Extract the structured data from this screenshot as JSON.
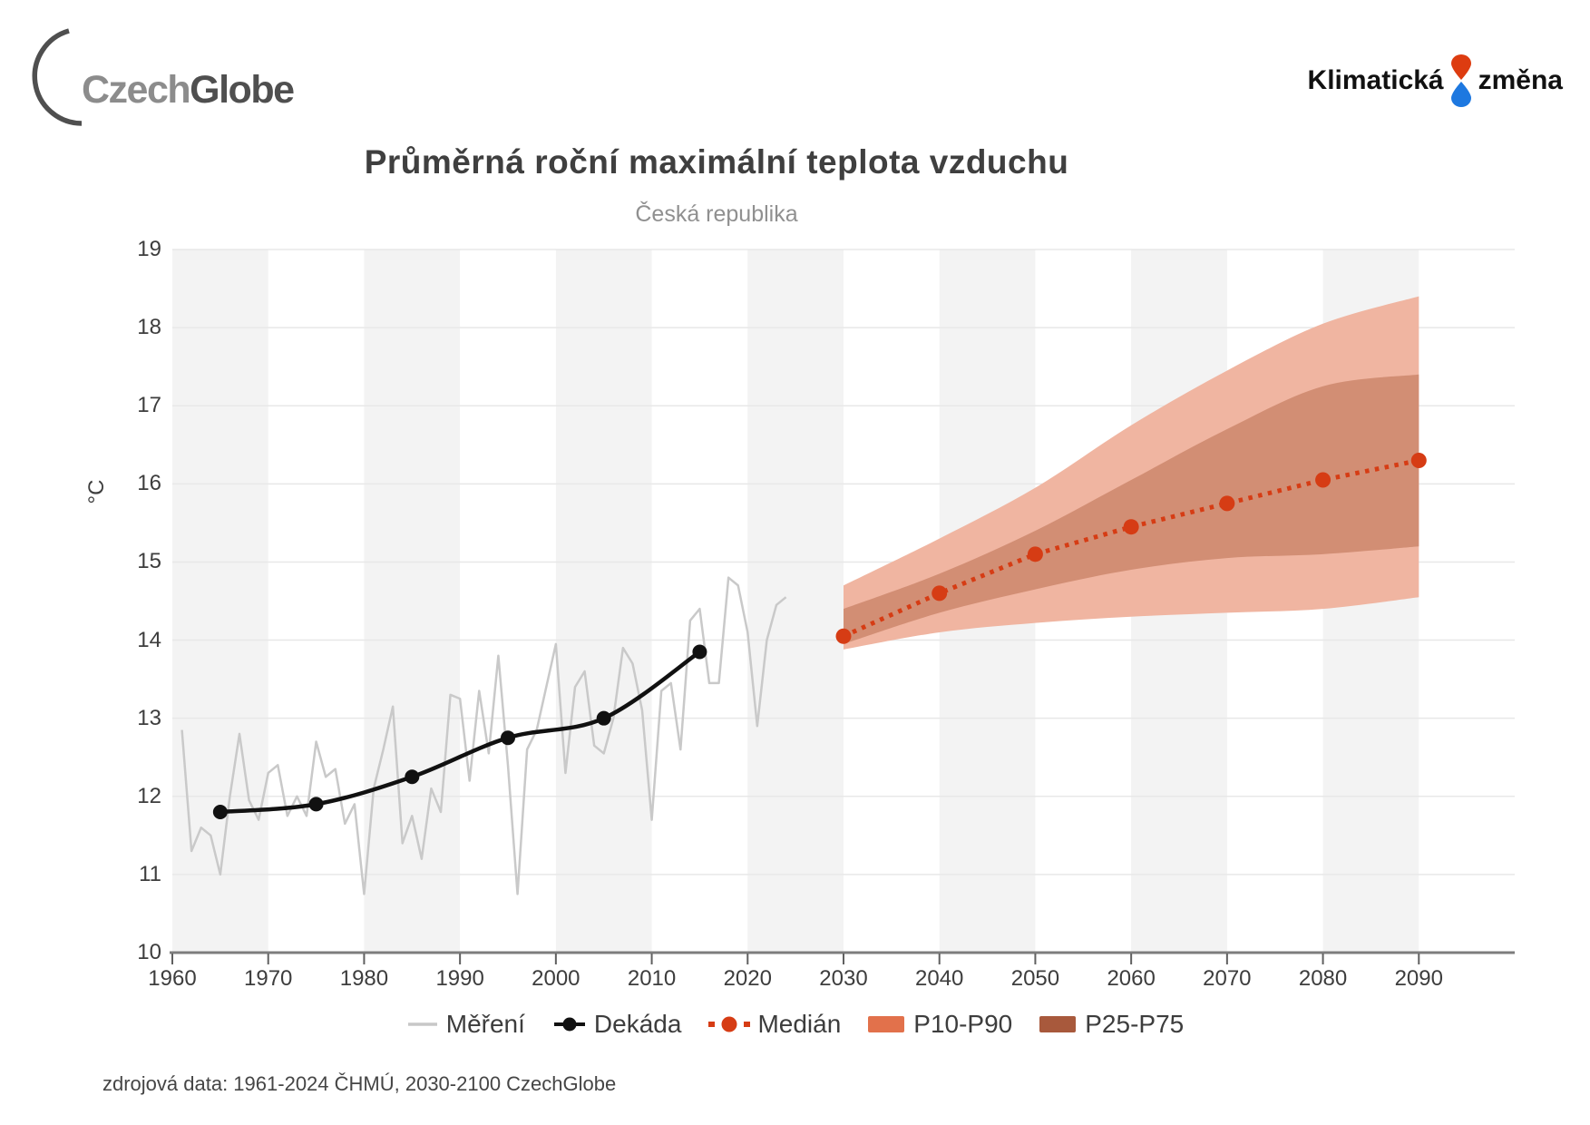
{
  "header": {
    "logo_left": {
      "text_part1": "Czech",
      "text_part2": "Globe"
    },
    "logo_right": {
      "word1": "Klimatická",
      "word2": "změna",
      "drop_red": "#dd3c10",
      "drop_blue": "#1d78e0"
    }
  },
  "title": "Průměrná roční maximální teplota vzduchu",
  "subtitle": "Česká republika",
  "source_note": "zdrojová data: 1961-2024 ČHMÚ, 2030-2100 CzechGlobe",
  "legend": {
    "items": [
      {
        "label": "Měření",
        "swatch": "gray-line",
        "color": "#c7c7c7"
      },
      {
        "label": "Dekáda",
        "swatch": "black-line-dot",
        "color": "#111111"
      },
      {
        "label": "Medián",
        "swatch": "red-dash-dot",
        "color": "#d63c14"
      },
      {
        "label": "P10-P90",
        "swatch": "rect",
        "color": "#e2714b"
      },
      {
        "label": "P25-P75",
        "swatch": "rect",
        "color": "#a8593c"
      }
    ]
  },
  "chart_data": {
    "type": "line",
    "title": "Průměrná roční maximální teplota vzduchu",
    "subtitle": "Česká republika",
    "ylabel": "°C",
    "ylim": [
      10,
      19
    ],
    "xlim": [
      1960,
      2100
    ],
    "grid": "horizontal",
    "y_ticks": [
      10,
      11,
      12,
      13,
      14,
      15,
      16,
      17,
      18,
      19
    ],
    "x_ticks": [
      1960,
      1970,
      1980,
      1990,
      2000,
      2010,
      2020,
      2030,
      2040,
      2050,
      2060,
      2070,
      2080,
      2090
    ],
    "stripe_decades": [
      1960,
      1980,
      2000,
      2020,
      2040,
      2060,
      2080
    ],
    "colors": {
      "stripe": "#f3f3f3",
      "gridline": "#e8e8e8",
      "axis": "#7d7d7d",
      "tick": "#606060",
      "measure": "#c9c9c9",
      "decade": "#111111",
      "median": "#d63c14",
      "band_outer": "#f0b5a1",
      "band_inner": "#d28e74"
    },
    "series": [
      {
        "name": "Měření",
        "kind": "line",
        "x_start": 1961,
        "values": [
          12.85,
          11.3,
          11.6,
          11.5,
          11.0,
          12.0,
          12.8,
          11.95,
          11.7,
          12.3,
          12.4,
          11.75,
          12.0,
          11.75,
          12.7,
          12.25,
          12.35,
          11.65,
          11.9,
          10.75,
          12.1,
          12.6,
          13.15,
          11.4,
          11.75,
          11.2,
          12.1,
          11.8,
          13.3,
          13.25,
          12.2,
          13.35,
          12.55,
          13.8,
          12.4,
          10.75,
          12.6,
          12.85,
          13.4,
          13.95,
          12.3,
          13.4,
          13.6,
          12.65,
          12.55,
          13.0,
          13.9,
          13.7,
          13.1,
          11.7,
          13.35,
          13.45,
          12.6,
          14.25,
          14.4,
          13.45,
          13.45,
          14.8,
          14.7,
          14.1,
          12.9,
          14.0,
          14.45,
          14.55
        ]
      },
      {
        "name": "Dekáda",
        "kind": "smooth-line-markers",
        "x": [
          1965,
          1975,
          1985,
          1995,
          2005,
          2015
        ],
        "y": [
          11.8,
          11.9,
          12.25,
          12.75,
          13.0,
          13.85
        ]
      },
      {
        "name": "Medián",
        "kind": "dotted-markers",
        "x": [
          2030,
          2040,
          2050,
          2060,
          2070,
          2080,
          2090
        ],
        "y": [
          14.05,
          14.6,
          15.1,
          15.45,
          15.75,
          16.05,
          16.3
        ]
      },
      {
        "name": "P10-P90",
        "kind": "band",
        "x": [
          2030,
          2040,
          2050,
          2060,
          2070,
          2080,
          2090
        ],
        "upper": [
          14.7,
          15.3,
          15.95,
          16.75,
          17.45,
          18.05,
          18.4
        ],
        "lower": [
          13.88,
          14.1,
          14.22,
          14.3,
          14.35,
          14.4,
          14.55
        ]
      },
      {
        "name": "P25-P75",
        "kind": "band",
        "x": [
          2030,
          2040,
          2050,
          2060,
          2070,
          2080,
          2090
        ],
        "upper": [
          14.4,
          14.85,
          15.4,
          16.05,
          16.7,
          17.25,
          17.4
        ],
        "lower": [
          13.95,
          14.35,
          14.65,
          14.9,
          15.05,
          15.1,
          15.2
        ]
      }
    ]
  }
}
